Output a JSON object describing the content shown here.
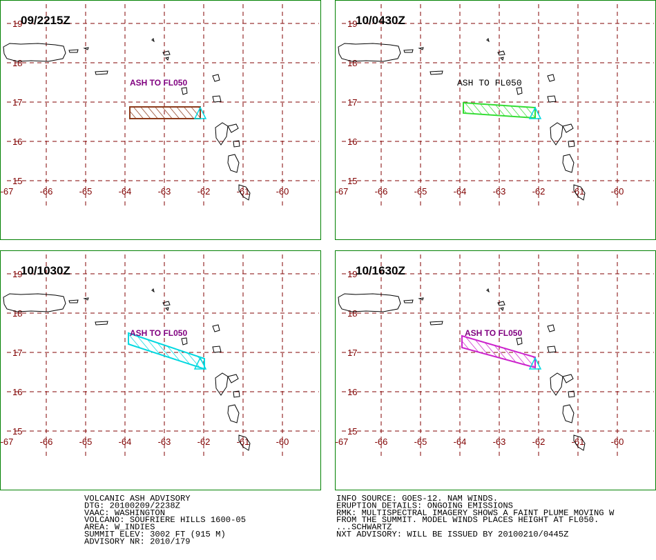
{
  "panels": [
    {
      "time": "09/2215Z",
      "label": "ASH TO FL050"
    },
    {
      "time": "10/0430Z",
      "label": "ASH TO FL050"
    },
    {
      "time": "10/1030Z",
      "label": "ASH TO FL050"
    },
    {
      "time": "10/1630Z",
      "label": "ASH TO FL050"
    }
  ],
  "longitudes": [
    -67,
    -66,
    -65,
    -64,
    -63,
    -62,
    -61,
    -60
  ],
  "latitudes": [
    19,
    18,
    17,
    16,
    15
  ],
  "advisory": {
    "left": [
      "VOLCANIC ASH ADVISORY",
      "DTG: 20100209/2238Z",
      "VAAC: WASHINGTON",
      "VOLCANO: SOUFRIERE HILLS 1600-05",
      "AREA: W_INDIES",
      "SUMMIT ELEV: 3002 FT (915 M)",
      "ADVISORY NR: 2010/179"
    ],
    "right": [
      "INFO SOURCE: GOES-12. NAM WINDS.",
      "ERUPTION DETAILS: ONGOING EMISSIONS",
      "RMK: MULTISPECTRAL IMAGERY SHOWS A FAINT PLUME MOVING W",
      "FROM THE SUMMIT. MODEL WINDS PLACES HEIGHT AT FL050.",
      "...SCHWARTZ",
      "NXT ADVISORY: WILL BE ISSUED BY 20100210/0445Z"
    ]
  }
}
